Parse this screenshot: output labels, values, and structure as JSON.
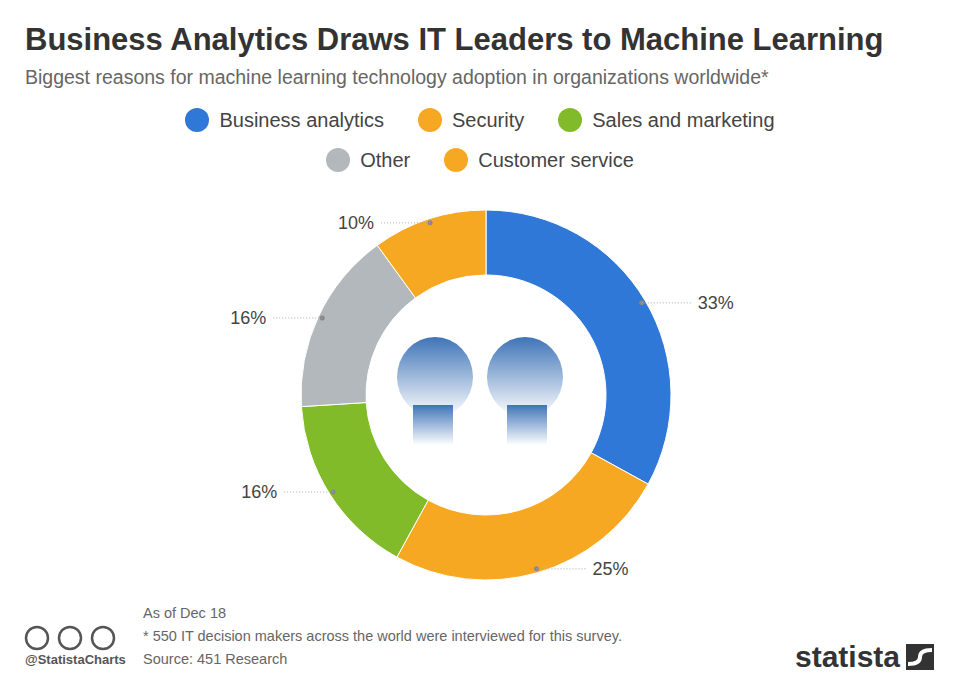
{
  "chart_data": {
    "type": "pie",
    "title": "Business Analytics Draws IT Leaders to Machine Learning",
    "subtitle": "Biggest reasons for machine learning technology adoption in organizations worldwide*",
    "categories": [
      "Business analytics",
      "Security",
      "Sales and marketing",
      "Other",
      "Customer service"
    ],
    "values": [
      33,
      25,
      16,
      16,
      10
    ],
    "value_labels": [
      "33%",
      "25%",
      "16%",
      "16%",
      "10%"
    ],
    "colors": [
      "#2f78d8",
      "#f7a823",
      "#82bb29",
      "#b3b8bc",
      "#f7a823"
    ],
    "data_labels": true,
    "legend": "top",
    "annotations": [
      "As of Dec 18",
      "* 550 IT decision makers across the world were interviewed for this survey.",
      "Source: 451 Research",
      "@StatistaCharts",
      "statista"
    ]
  }
}
